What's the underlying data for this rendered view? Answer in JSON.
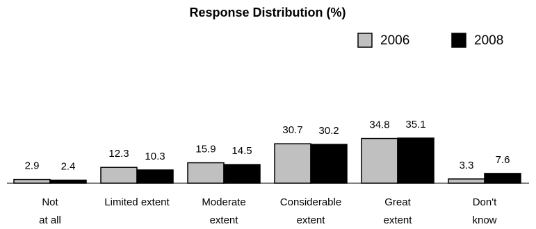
{
  "chart_data": {
    "type": "bar",
    "title": "Response Distribution (%)",
    "categories": [
      "Not\nat all",
      "Limited extent",
      "Moderate\nextent",
      "Considerable\nextent",
      "Great\nextent",
      "Don't\nknow"
    ],
    "series": [
      {
        "name": "2006",
        "color": "#c0c0c0",
        "values": [
          2.9,
          12.3,
          15.9,
          30.7,
          34.8,
          3.3
        ]
      },
      {
        "name": "2008",
        "color": "#000000",
        "values": [
          2.4,
          10.3,
          14.5,
          30.2,
          35.1,
          7.6
        ]
      }
    ],
    "legend": "top-right"
  }
}
